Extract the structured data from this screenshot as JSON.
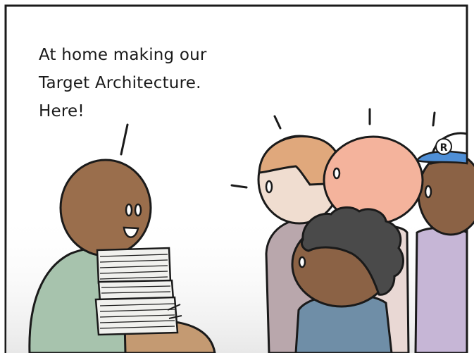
{
  "caption": {
    "line1": "At home making our",
    "line2": "Target Architecture.",
    "line3": "Here!"
  },
  "cap_logo_text": "R",
  "colors": {
    "outline": "#1a1a1a",
    "speaker_skin": "#9a6e4c",
    "speaker_shirt": "#a7c3ad",
    "paper": "#f1f1ee",
    "tan_head": "#e0a87c",
    "pink_head": "#f4b39c",
    "dark_skin": "#8b6245",
    "cap_blue": "#4f8fd6",
    "shirt_gray": "#b9a7ac",
    "shirt_lavender": "#c6b6d6",
    "shirt_blue": "#6f8ea7",
    "hair_dark": "#4a4a4a",
    "table": "#c49a72"
  }
}
